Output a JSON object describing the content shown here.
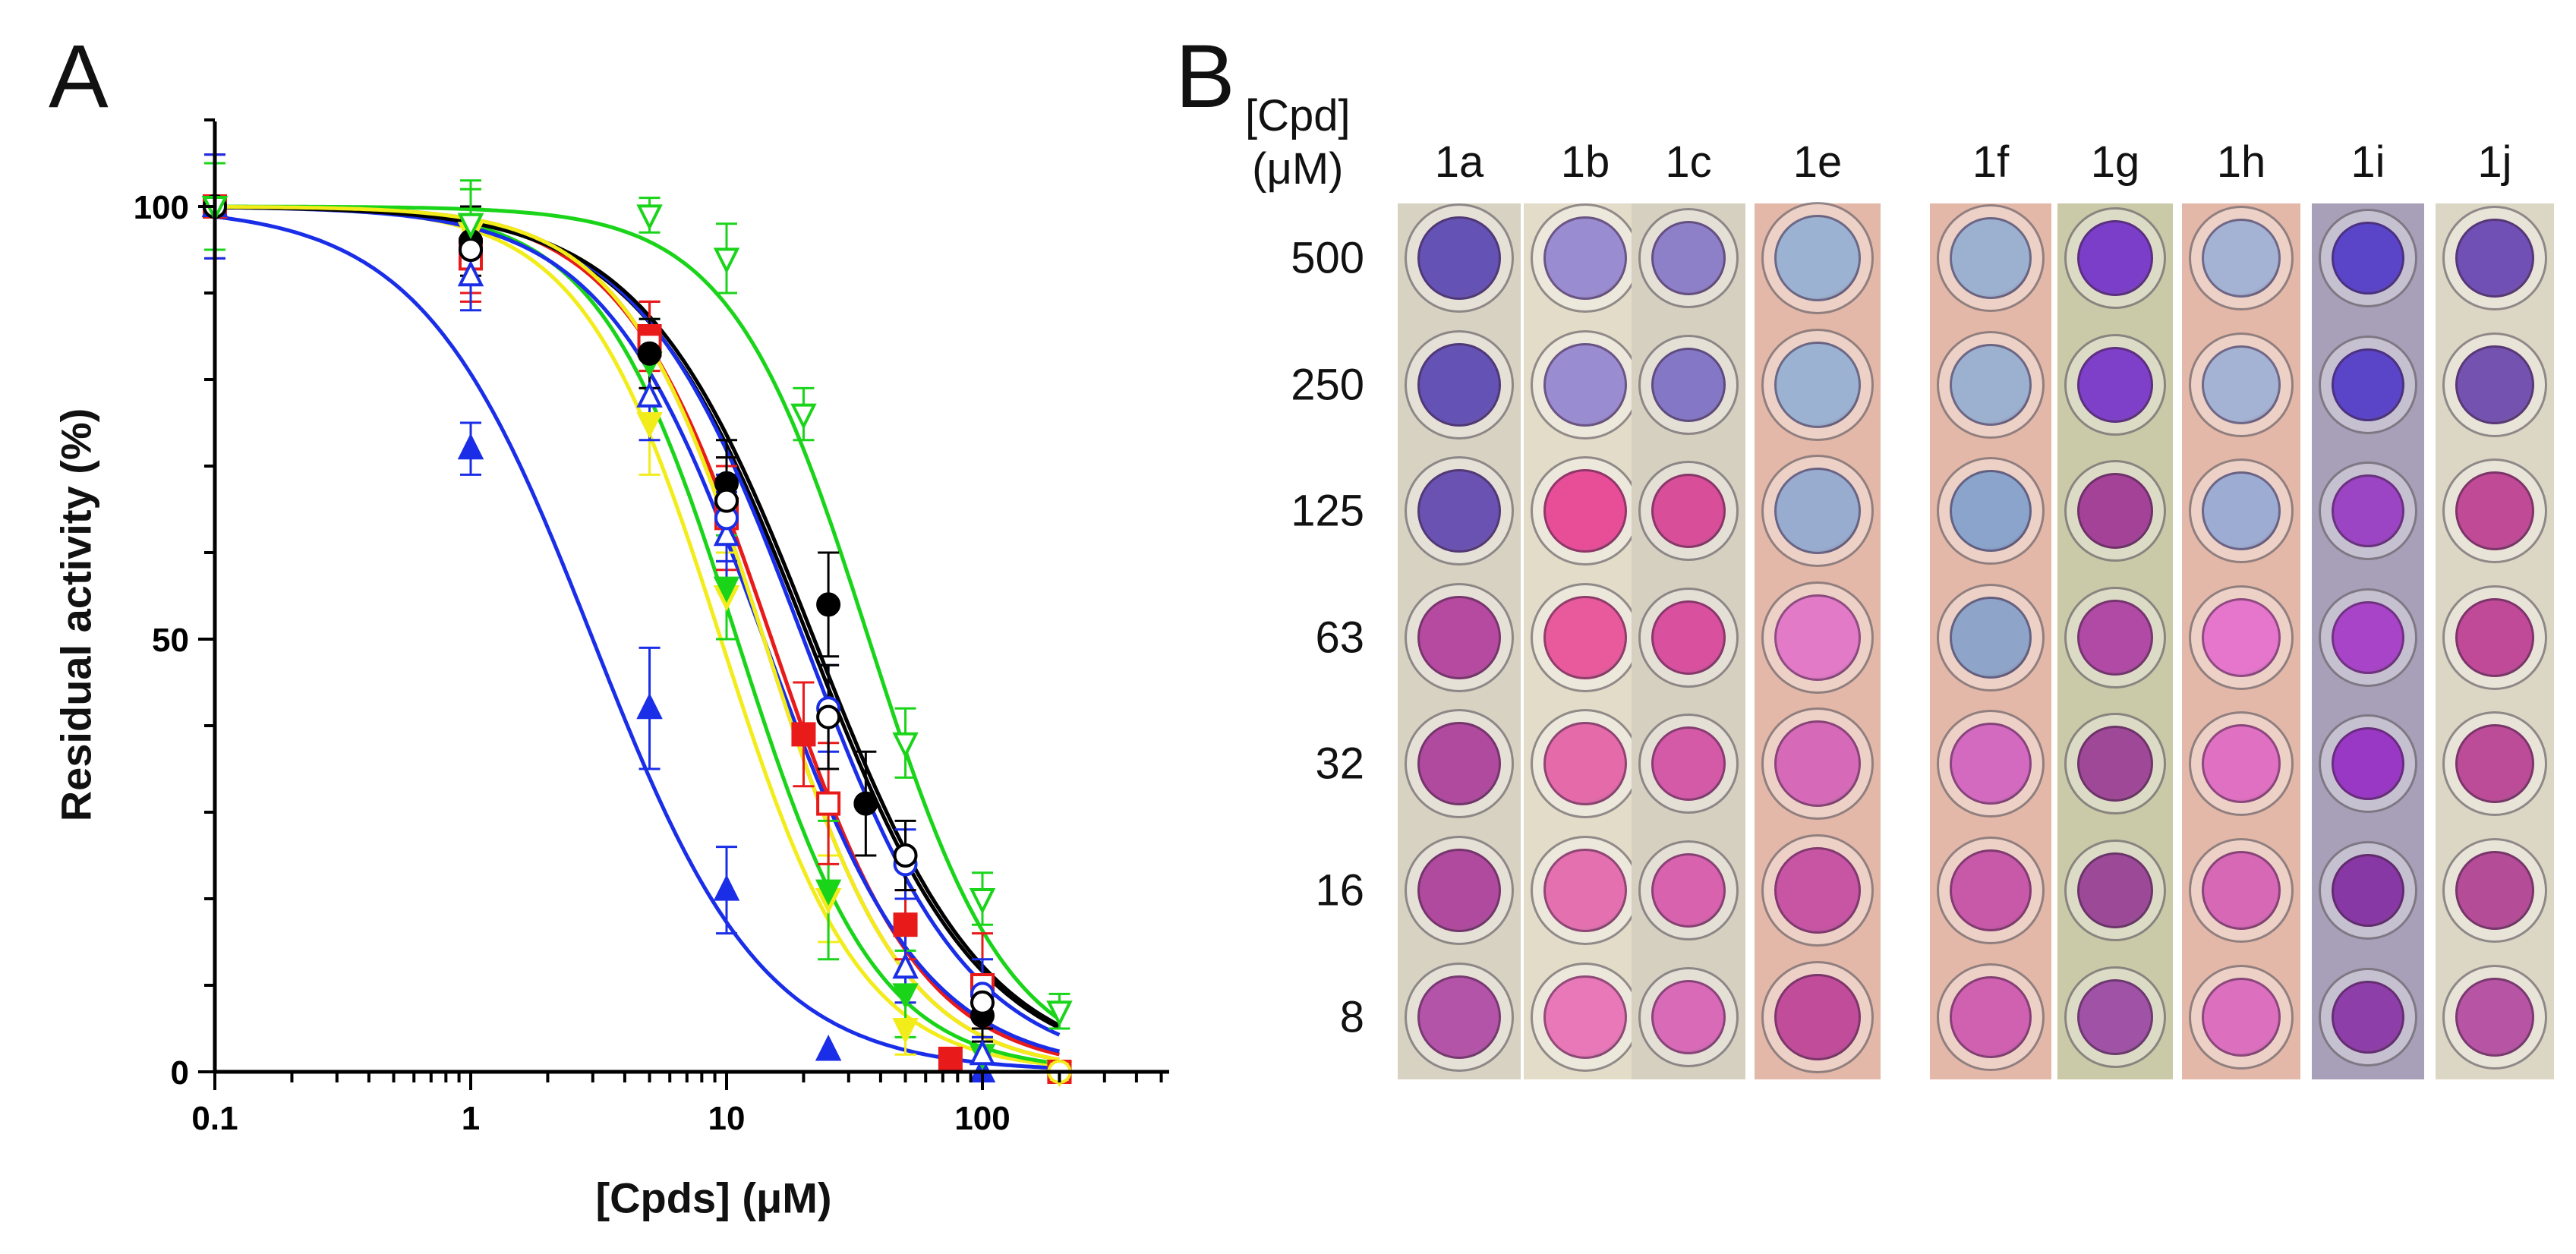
{
  "panel_labels": {
    "a": "A",
    "b": "B"
  },
  "chart_data": {
    "type": "scatter",
    "title": "",
    "xlabel": "[Cpds] (μM)",
    "ylabel": "Residual activity (%)",
    "xscale": "log",
    "xlim": [
      0.1,
      500
    ],
    "ylim": [
      0,
      110
    ],
    "x_ticks": [
      {
        "value": 0.1,
        "label": "0.1"
      },
      {
        "value": 1,
        "label": "1"
      },
      {
        "value": 10,
        "label": "10"
      },
      {
        "value": 100,
        "label": "100"
      }
    ],
    "y_ticks": [
      {
        "value": 0,
        "label": "0"
      },
      {
        "value": 50,
        "label": "50"
      },
      {
        "value": 100,
        "label": "100"
      }
    ],
    "series": [
      {
        "name": "blue filled triangle",
        "color": "#1a2ee8",
        "marker": "triangle-up",
        "filled": true,
        "ic50": 3.0,
        "hill": 1.3,
        "points": [
          {
            "x": 0.1,
            "y": 100,
            "err": 6
          },
          {
            "x": 1,
            "y": 72,
            "err": 3
          },
          {
            "x": 5,
            "y": 42,
            "err": 7
          },
          {
            "x": 10,
            "y": 21,
            "err": 5
          },
          {
            "x": 25,
            "y": 2.5,
            "err": 0
          },
          {
            "x": 100,
            "y": 0,
            "err": 0
          }
        ]
      },
      {
        "name": "yellow filled triangle down",
        "color": "#f2ec1a",
        "marker": "triangle-down",
        "filled": true,
        "ic50": 9.5,
        "hill": 1.6,
        "points": [
          {
            "x": 0.1,
            "y": 100,
            "err": 5
          },
          {
            "x": 1,
            "y": 97,
            "err": 5
          },
          {
            "x": 5,
            "y": 75,
            "err": 6
          },
          {
            "x": 10,
            "y": 55,
            "err": 5
          },
          {
            "x": 25,
            "y": 20,
            "err": 5
          },
          {
            "x": 50,
            "y": 5,
            "err": 3
          },
          {
            "x": 200,
            "y": 0,
            "err": 0
          }
        ]
      },
      {
        "name": "green filled triangle down",
        "color": "#1ad41a",
        "marker": "triangle-down",
        "filled": true,
        "ic50": 11.0,
        "hill": 1.6,
        "points": [
          {
            "x": 0.1,
            "y": 100,
            "err": 5
          },
          {
            "x": 1,
            "y": 98,
            "err": 4
          },
          {
            "x": 5,
            "y": 82,
            "err": 5
          },
          {
            "x": 10,
            "y": 56,
            "err": 6
          },
          {
            "x": 25,
            "y": 21,
            "err": 8
          },
          {
            "x": 50,
            "y": 9,
            "err": 5
          },
          {
            "x": 100,
            "y": 2,
            "err": 2
          }
        ]
      },
      {
        "name": "red filled square",
        "color": "#e81a1a",
        "marker": "square",
        "filled": true,
        "ic50": 14.0,
        "hill": 1.6,
        "points": [
          {
            "x": 0.1,
            "y": 100,
            "err": 5
          },
          {
            "x": 1,
            "y": 95,
            "err": 5
          },
          {
            "x": 5,
            "y": 85,
            "err": 4
          },
          {
            "x": 10,
            "y": 65,
            "err": 6
          },
          {
            "x": 20,
            "y": 39,
            "err": 6
          },
          {
            "x": 50,
            "y": 17,
            "err": 4
          },
          {
            "x": 75,
            "y": 1.5,
            "err": 0
          },
          {
            "x": 200,
            "y": 0,
            "err": 0
          }
        ]
      },
      {
        "name": "red open square",
        "color": "#e81a1a",
        "marker": "square",
        "filled": false,
        "ic50": 15.0,
        "hill": 1.5,
        "points": [
          {
            "x": 0.1,
            "y": 100,
            "err": 6
          },
          {
            "x": 1,
            "y": 94,
            "err": 5
          },
          {
            "x": 5,
            "y": 84,
            "err": 5
          },
          {
            "x": 10,
            "y": 64,
            "err": 6
          },
          {
            "x": 25,
            "y": 31,
            "err": 7
          },
          {
            "x": 100,
            "y": 10,
            "err": 6
          },
          {
            "x": 200,
            "y": 0,
            "err": 0
          }
        ]
      },
      {
        "name": "blue open triangle",
        "color": "#1a2ee8",
        "marker": "triangle-up",
        "filled": false,
        "ic50": 14.0,
        "hill": 1.4,
        "points": [
          {
            "x": 0.1,
            "y": 100,
            "err": 6
          },
          {
            "x": 1,
            "y": 92,
            "err": 4
          },
          {
            "x": 5,
            "y": 78,
            "err": 5
          },
          {
            "x": 10,
            "y": 62,
            "err": 5
          },
          {
            "x": 50,
            "y": 12,
            "err": 4
          },
          {
            "x": 100,
            "y": 2,
            "err": 2
          }
        ]
      },
      {
        "name": "black filled circle",
        "color": "#000000",
        "marker": "circle",
        "filled": true,
        "ic50": 21.0,
        "hill": 1.3,
        "points": [
          {
            "x": 0.1,
            "y": 100,
            "err": 5
          },
          {
            "x": 1,
            "y": 96,
            "err": 4
          },
          {
            "x": 5,
            "y": 83,
            "err": 4
          },
          {
            "x": 10,
            "y": 68,
            "err": 5
          },
          {
            "x": 25,
            "y": 54,
            "err": 6
          },
          {
            "x": 35,
            "y": 31,
            "err": 6
          },
          {
            "x": 100,
            "y": 6.5,
            "err": 3
          }
        ]
      },
      {
        "name": "blue open circle",
        "color": "#1a2ee8",
        "marker": "circle",
        "filled": false,
        "ic50": 20.0,
        "hill": 1.35,
        "points": [
          {
            "x": 0.1,
            "y": 100,
            "err": 5
          },
          {
            "x": 1,
            "y": 95,
            "err": 4
          },
          {
            "x": 10,
            "y": 64,
            "err": 5
          },
          {
            "x": 25,
            "y": 42,
            "err": 5
          },
          {
            "x": 50,
            "y": 24,
            "err": 4
          },
          {
            "x": 100,
            "y": 9,
            "err": 4
          }
        ]
      },
      {
        "name": "black open circle",
        "color": "#000000",
        "marker": "circle",
        "filled": false,
        "ic50": 22.0,
        "hill": 1.3,
        "points": [
          {
            "x": 0.1,
            "y": 100,
            "err": 5
          },
          {
            "x": 1,
            "y": 95,
            "err": 4
          },
          {
            "x": 10,
            "y": 66,
            "err": 5
          },
          {
            "x": 25,
            "y": 41,
            "err": 6
          },
          {
            "x": 50,
            "y": 25,
            "err": 4
          },
          {
            "x": 100,
            "y": 8,
            "err": 3
          }
        ]
      },
      {
        "name": "green open triangle down",
        "color": "#1ad41a",
        "marker": "triangle-down",
        "filled": false,
        "ic50": 36.0,
        "hill": 1.6,
        "points": [
          {
            "x": 0.1,
            "y": 100,
            "err": 5
          },
          {
            "x": 1,
            "y": 98,
            "err": 5
          },
          {
            "x": 5,
            "y": 99,
            "err": 2
          },
          {
            "x": 10,
            "y": 94,
            "err": 4
          },
          {
            "x": 20,
            "y": 76,
            "err": 3
          },
          {
            "x": 50,
            "y": 38,
            "err": 4
          },
          {
            "x": 100,
            "y": 20,
            "err": 3
          },
          {
            "x": 200,
            "y": 7,
            "err": 2
          }
        ]
      },
      {
        "name": "yellow open circle",
        "color": "#f2ec1a",
        "marker": "circle",
        "filled": false,
        "ic50": 14.0,
        "hill": 1.6,
        "points": [
          {
            "x": 200,
            "y": 0,
            "err": 0
          }
        ]
      }
    ]
  },
  "plate": {
    "header_line1": "[Cpd]",
    "header_line2": "(μM)",
    "concentrations": [
      "500",
      "250",
      "125",
      "63",
      "32",
      "16",
      "8"
    ],
    "compounds": [
      {
        "label": "1a",
        "bg": "#d7d2c2",
        "wells": [
          "#6452b4",
          "#6452b4",
          "#6a52b2",
          "#b64aa0",
          "#b04a9e",
          "#b04a9e",
          "#b454a8"
        ]
      },
      {
        "label": "1b",
        "bg": "#e2dcc8",
        "wells": [
          "#9a8cd0",
          "#9a8cd0",
          "#e84e98",
          "#e85a9c",
          "#e46aaa",
          "#e470b0",
          "#e878b8"
        ]
      },
      {
        "label": "1c",
        "bg": "#d6d0c0",
        "wells": [
          "#8e80c8",
          "#8478c6",
          "#d84e98",
          "#d8509e",
          "#d45aa8",
          "#d862ae",
          "#d86ab8"
        ]
      },
      {
        "label": "1e",
        "bg": "#e3b8a8",
        "wells": [
          "#9cb2d2",
          "#9cb2d2",
          "#98acd0",
          "#e27ac8",
          "#d66ab8",
          "#c854a4",
          "#c04c9a"
        ]
      },
      {
        "label": "1f",
        "bg": "#e3b8a8",
        "wells": [
          "#9cb0d0",
          "#9cb0d0",
          "#8aa4cc",
          "#8ea4c8",
          "#d46ac0",
          "#c858a8",
          "#d060b0"
        ]
      },
      {
        "label": "1g",
        "bg": "#cacaa8",
        "wells": [
          "#7a3ec8",
          "#7e40c8",
          "#a44298",
          "#b04aa4",
          "#a04898",
          "#9c4a98",
          "#a052a6"
        ]
      },
      {
        "label": "1h",
        "bg": "#e3b8a8",
        "wells": [
          "#a4b2d4",
          "#a4b2d4",
          "#9cacd2",
          "#e676cc",
          "#e070c2",
          "#d668b6",
          "#dc70be"
        ]
      },
      {
        "label": "1i",
        "bg": "#a8a0b8",
        "wells": [
          "#5a44c8",
          "#5a44c8",
          "#9b44c4",
          "#a844c8",
          "#9838c4",
          "#8838a4",
          "#8e3ea8"
        ]
      },
      {
        "label": "1j",
        "bg": "#dcd6c4",
        "wells": [
          "#7050b4",
          "#7452b0",
          "#c04a96",
          "#c04a98",
          "#bc4c98",
          "#b44c98",
          "#b854a4"
        ]
      }
    ]
  }
}
